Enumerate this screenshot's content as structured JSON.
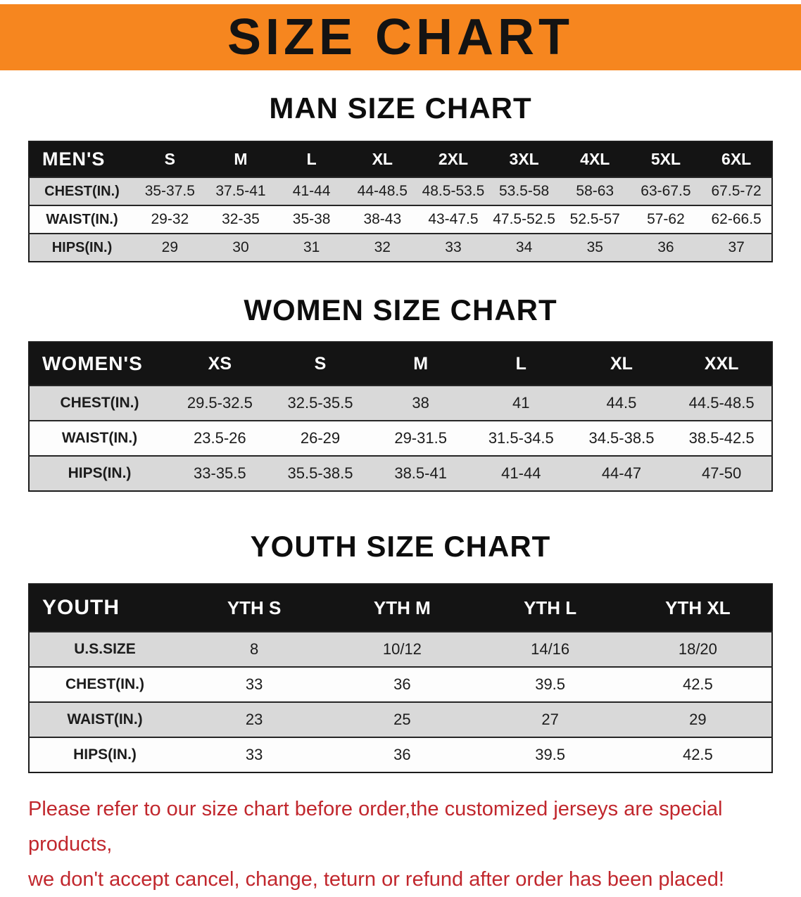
{
  "banner": {
    "title": "SIZE CHART"
  },
  "man": {
    "heading": "MAN SIZE CHART",
    "header": [
      "MEN'S",
      "S",
      "M",
      "L",
      "XL",
      "2XL",
      "3XL",
      "4XL",
      "5XL",
      "6XL"
    ],
    "rows": [
      [
        "CHEST(IN.)",
        "35-37.5",
        "37.5-41",
        "41-44",
        "44-48.5",
        "48.5-53.5",
        "53.5-58",
        "58-63",
        "63-67.5",
        "67.5-72"
      ],
      [
        "WAIST(IN.)",
        "29-32",
        "32-35",
        "35-38",
        "38-43",
        "43-47.5",
        "47.5-52.5",
        "52.5-57",
        "57-62",
        "62-66.5"
      ],
      [
        "HIPS(IN.)",
        "29",
        "30",
        "31",
        "32",
        "33",
        "34",
        "35",
        "36",
        "37"
      ]
    ]
  },
  "women": {
    "heading": "WOMEN SIZE CHART",
    "header": [
      "WOMEN'S",
      "XS",
      "S",
      "M",
      "L",
      "XL",
      "XXL"
    ],
    "rows": [
      [
        "CHEST(IN.)",
        "29.5-32.5",
        "32.5-35.5",
        "38",
        "41",
        "44.5",
        "44.5-48.5"
      ],
      [
        "WAIST(IN.)",
        "23.5-26",
        "26-29",
        "29-31.5",
        "31.5-34.5",
        "34.5-38.5",
        "38.5-42.5"
      ],
      [
        "HIPS(IN.)",
        "33-35.5",
        "35.5-38.5",
        "38.5-41",
        "41-44",
        "44-47",
        "47-50"
      ]
    ]
  },
  "youth": {
    "heading": "YOUTH SIZE CHART",
    "header": [
      "YOUTH",
      "YTH S",
      "YTH M",
      "YTH L",
      "YTH XL"
    ],
    "rows": [
      [
        "U.S.SIZE",
        "8",
        "10/12",
        "14/16",
        "18/20"
      ],
      [
        "CHEST(IN.)",
        "33",
        "36",
        "39.5",
        "42.5"
      ],
      [
        "WAIST(IN.)",
        "23",
        "25",
        "27",
        "29"
      ],
      [
        "HIPS(IN.)",
        "33",
        "36",
        "39.5",
        "42.5"
      ]
    ]
  },
  "notice": {
    "line1": "Please refer to our size chart before order,the customized jerseys are special products,",
    "line2": "we don't accept cancel, change, teturn or refund after order has been placed!"
  },
  "colors": {
    "banner_bg": "#F6861F",
    "table_header_bg": "#141414",
    "row_gray": "#D9D9D9",
    "notice_red": "#C1272D"
  }
}
